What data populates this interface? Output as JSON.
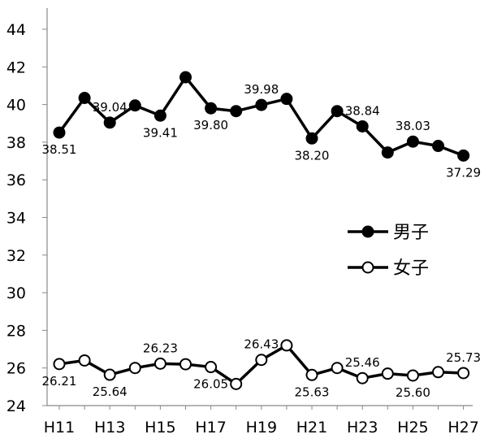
{
  "chart_data": {
    "type": "line",
    "x": [
      "H11",
      "H12",
      "H13",
      "H14",
      "H15",
      "H16",
      "H17",
      "H18",
      "H19",
      "H20",
      "H21",
      "H22",
      "H23",
      "H24",
      "H25",
      "H26",
      "H27"
    ],
    "x_tick_labels": [
      "H11",
      "H13",
      "H15",
      "H17",
      "H19",
      "H21",
      "H23",
      "H25",
      "H27"
    ],
    "ylim": [
      24,
      44
    ],
    "y_ticks": [
      24,
      26,
      28,
      30,
      32,
      34,
      36,
      38,
      40,
      42,
      44
    ],
    "grid": false,
    "legend_position": "right-middle",
    "series": [
      {
        "name": "男子",
        "marker": "filled-circle",
        "color": "#000000",
        "values": [
          38.51,
          40.35,
          39.04,
          39.95,
          39.41,
          41.45,
          39.8,
          39.65,
          39.98,
          40.3,
          38.2,
          39.65,
          38.84,
          37.45,
          38.03,
          37.8,
          37.29
        ],
        "data_labels": [
          {
            "i": 0,
            "text": "38.51",
            "pos": "below"
          },
          {
            "i": 2,
            "text": "39.04",
            "pos": "above"
          },
          {
            "i": 4,
            "text": "39.41",
            "pos": "below"
          },
          {
            "i": 6,
            "text": "39.80",
            "pos": "below"
          },
          {
            "i": 8,
            "text": "39.98",
            "pos": "above"
          },
          {
            "i": 10,
            "text": "38.20",
            "pos": "below"
          },
          {
            "i": 12,
            "text": "38.84",
            "pos": "above"
          },
          {
            "i": 14,
            "text": "38.03",
            "pos": "above"
          },
          {
            "i": 16,
            "text": "37.29",
            "pos": "below"
          }
        ]
      },
      {
        "name": "女子",
        "marker": "open-circle",
        "color": "#000000",
        "values": [
          26.21,
          26.4,
          25.64,
          26.0,
          26.23,
          26.2,
          26.05,
          25.15,
          26.43,
          27.2,
          25.63,
          26.0,
          25.46,
          25.7,
          25.6,
          25.78,
          25.73
        ],
        "data_labels": [
          {
            "i": 0,
            "text": "26.21",
            "pos": "below"
          },
          {
            "i": 2,
            "text": "25.64",
            "pos": "below"
          },
          {
            "i": 4,
            "text": "26.23",
            "pos": "above"
          },
          {
            "i": 6,
            "text": "26.05",
            "pos": "below"
          },
          {
            "i": 8,
            "text": "26.43",
            "pos": "above"
          },
          {
            "i": 10,
            "text": "25.63",
            "pos": "below"
          },
          {
            "i": 12,
            "text": "25.46",
            "pos": "above"
          },
          {
            "i": 14,
            "text": "25.60",
            "pos": "below"
          },
          {
            "i": 16,
            "text": "25.73",
            "pos": "above"
          }
        ]
      }
    ]
  }
}
